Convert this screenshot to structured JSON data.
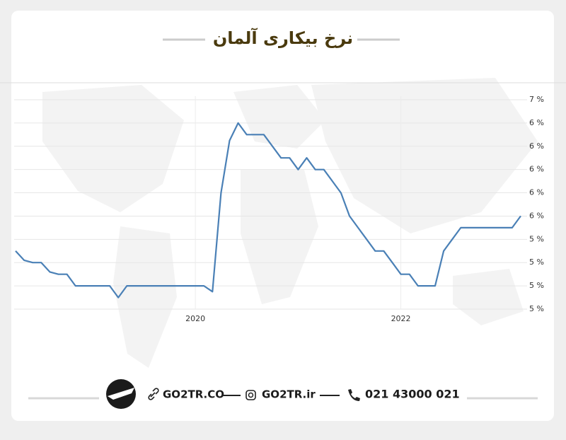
{
  "chart_data": {
    "type": "line",
    "title": "نرخ بیکاری آلمان",
    "categories": [
      null,
      null,
      null,
      null,
      null,
      null,
      null,
      null,
      null,
      null,
      null,
      null,
      null,
      null,
      null,
      null,
      null,
      null,
      null,
      null,
      null,
      "2020",
      null,
      null,
      null,
      null,
      null,
      null,
      null,
      null,
      null,
      null,
      null,
      null,
      null,
      null,
      null,
      null,
      null,
      null,
      null,
      null,
      null,
      null,
      null,
      "2022",
      null,
      null,
      null,
      null,
      null,
      null,
      null,
      null,
      null,
      null,
      null,
      null,
      null,
      null
    ],
    "series": [
      {
        "color": "#4a80b6",
        "values": [
          5.3,
          5.22,
          5.2,
          5.2,
          5.12,
          5.1,
          5.1,
          5.0,
          5.0,
          5.0,
          5.0,
          5.0,
          4.9,
          5.0,
          5.0,
          5.0,
          5.0,
          5.0,
          5.0,
          5.0,
          5.0,
          5.0,
          5.0,
          4.95,
          5.8,
          6.25,
          6.4,
          6.3,
          6.3,
          6.3,
          6.2,
          6.1,
          6.1,
          6.0,
          6.1,
          6.0,
          6.0,
          5.9,
          5.8,
          5.6,
          5.5,
          5.4,
          5.3,
          5.3,
          5.2,
          5.1,
          5.1,
          5.0,
          5.0,
          5.0,
          5.3,
          5.4,
          5.5,
          5.5,
          5.5,
          5.5,
          5.5,
          5.5,
          5.5,
          5.6
        ]
      }
    ],
    "ylim": [
      4.8,
      6.6
    ],
    "yticks": [
      {
        "value": 4.8,
        "label": "5 %"
      },
      {
        "value": 5.0,
        "label": "5 %"
      },
      {
        "value": 5.2,
        "label": "5 %"
      },
      {
        "value": 5.4,
        "label": "5 %"
      },
      {
        "value": 5.6,
        "label": "6 %"
      },
      {
        "value": 5.8,
        "label": "6 %"
      },
      {
        "value": 6.0,
        "label": "6 %"
      },
      {
        "value": 6.2,
        "label": "6 %"
      },
      {
        "value": 6.4,
        "label": "6 %"
      },
      {
        "value": 6.6,
        "label": "7 %"
      }
    ],
    "grid": true
  },
  "footer": {
    "website": "GO2TR.CO",
    "instagram": "GO2TR.ir",
    "phone": "021 43000 021"
  }
}
